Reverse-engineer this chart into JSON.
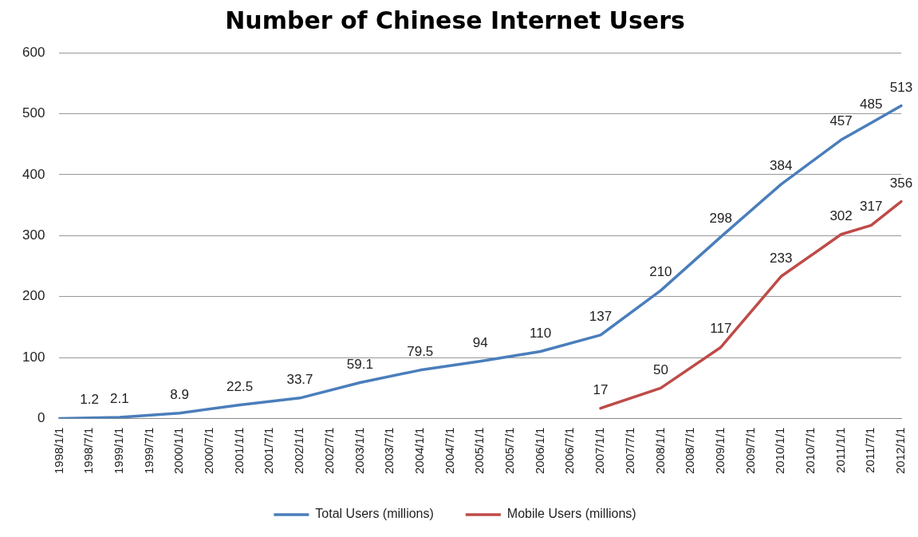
{
  "chart_data": {
    "type": "line",
    "title": "Number of Chinese Internet Users",
    "categories": [
      "1998/1/1",
      "1998/7/1",
      "1999/1/1",
      "1999/7/1",
      "2000/1/1",
      "2000/7/1",
      "2001/1/1",
      "2001/7/1",
      "2002/1/1",
      "2002/7/1",
      "2003/1/1",
      "2003/7/1",
      "2004/1/1",
      "2004/7/1",
      "2005/1/1",
      "2005/7/1",
      "2006/1/1",
      "2006/7/1",
      "2007/1/1",
      "2007/7/1",
      "2008/1/1",
      "2008/7/1",
      "2009/1/1",
      "2009/7/1",
      "2010/1/1",
      "2010/7/1",
      "2011/1/1",
      "2011/7/1",
      "2012/1/1"
    ],
    "series": [
      {
        "name": "Total Users (millions)",
        "color": "#4a7ebb",
        "values": [
          0,
          1.2,
          2.1,
          null,
          8.9,
          null,
          22.5,
          null,
          33.7,
          null,
          59.1,
          null,
          79.5,
          null,
          94,
          null,
          110,
          null,
          137,
          null,
          210,
          null,
          298,
          null,
          384,
          null,
          457,
          485,
          513
        ],
        "value_labels": [
          null,
          "1.2",
          "2.1",
          null,
          "8.9",
          null,
          "22.5",
          null,
          "33.7",
          null,
          "59.1",
          null,
          "79.5",
          null,
          "94",
          null,
          "110",
          null,
          "137",
          null,
          "210",
          null,
          "298",
          null,
          "384",
          null,
          "457",
          "485",
          "513"
        ]
      },
      {
        "name": "Mobile Users (millions)",
        "color": "#be4b48",
        "values": [
          null,
          null,
          null,
          null,
          null,
          null,
          null,
          null,
          null,
          null,
          null,
          null,
          null,
          null,
          null,
          null,
          null,
          null,
          17,
          null,
          50,
          null,
          117,
          null,
          233,
          null,
          302,
          317,
          356
        ],
        "value_labels": [
          null,
          null,
          null,
          null,
          null,
          null,
          null,
          null,
          null,
          null,
          null,
          null,
          null,
          null,
          null,
          null,
          null,
          null,
          "17",
          null,
          "50",
          null,
          "117",
          null,
          "233",
          null,
          "302",
          "317",
          "356"
        ]
      }
    ],
    "ylim": [
      0,
      600
    ],
    "yticks": [
      0,
      100,
      200,
      300,
      400,
      500,
      600
    ],
    "grid": "y",
    "legend": "bottom",
    "marker": "none",
    "line_style": "solid"
  }
}
